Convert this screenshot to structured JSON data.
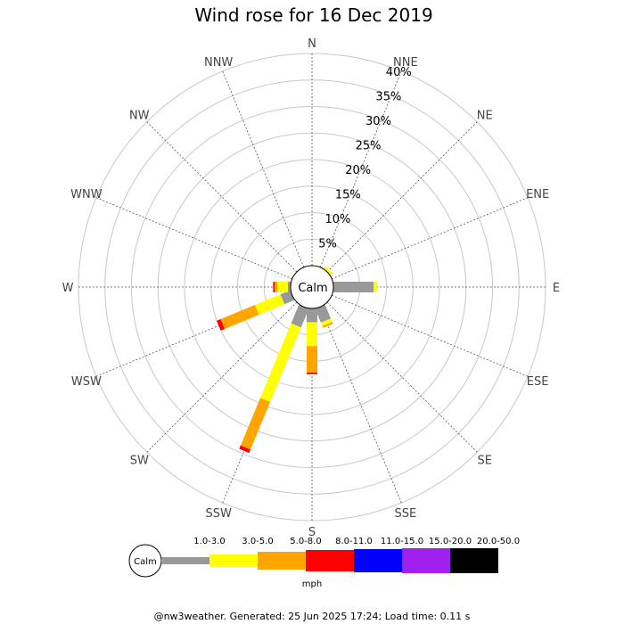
{
  "chart_data": {
    "type": "wind-rose",
    "title": "Wind rose for 16 Dec 2019",
    "directions": [
      "N",
      "NNE",
      "NE",
      "ENE",
      "E",
      "ESE",
      "SE",
      "SSE",
      "S",
      "SSW",
      "SW",
      "WSW",
      "W",
      "WNW",
      "NW",
      "NNW"
    ],
    "ring_labels": [
      "5%",
      "10%",
      "15%",
      "20%",
      "25%",
      "30%",
      "35%",
      "40%"
    ],
    "rmax": 40,
    "calm_label": "Calm",
    "unit": "mph",
    "speed_bins": [
      {
        "label": "1.0-3.0",
        "color": "#999999"
      },
      {
        "label": "3.0-5.0",
        "color": "#ffff00"
      },
      {
        "label": "5.0-8.0",
        "color": "#ffa500"
      },
      {
        "label": "8.0-11.0",
        "color": "#ff0000"
      },
      {
        "label": "11.0-15.0",
        "color": "#0000ff"
      },
      {
        "label": "15.0-20.0",
        "color": "#a020f0"
      },
      {
        "label": "20.0-50.0",
        "color": "#000000"
      }
    ],
    "series": [
      {
        "direction": "N",
        "values": [
          0,
          0,
          0,
          0,
          0,
          0,
          0
        ]
      },
      {
        "direction": "NNE",
        "values": [
          0,
          0,
          0,
          0,
          0,
          0,
          0
        ]
      },
      {
        "direction": "NE",
        "values": [
          0,
          0.5,
          0,
          0,
          0,
          0,
          0
        ]
      },
      {
        "direction": "ENE",
        "values": [
          0,
          0,
          0,
          0,
          0,
          0,
          0
        ]
      },
      {
        "direction": "E",
        "values": [
          7.6,
          0.6,
          0,
          0,
          0,
          0,
          0
        ]
      },
      {
        "direction": "ESE",
        "values": [
          0,
          0,
          0,
          0,
          0,
          0,
          0
        ]
      },
      {
        "direction": "SE",
        "values": [
          0,
          0,
          0,
          0,
          0,
          0,
          0
        ]
      },
      {
        "direction": "SSE",
        "values": [
          2.8,
          0.7,
          0.4,
          0,
          0,
          0,
          0
        ]
      },
      {
        "direction": "S",
        "values": [
          2.6,
          4.5,
          5.0,
          0.3,
          0,
          0,
          0
        ]
      },
      {
        "direction": "SSW",
        "values": [
          3.8,
          15.2,
          9.7,
          0.7,
          0,
          0,
          0
        ]
      },
      {
        "direction": "SW",
        "values": [
          0,
          0,
          0,
          0,
          0,
          0,
          0
        ]
      },
      {
        "direction": "WSW",
        "values": [
          2.0,
          5.2,
          7.0,
          0.8,
          0,
          0,
          0
        ]
      },
      {
        "direction": "W",
        "values": [
          0.5,
          2.0,
          0.5,
          0.3,
          0,
          0,
          0
        ]
      },
      {
        "direction": "WNW",
        "values": [
          0,
          0,
          0,
          0,
          0,
          0,
          0
        ]
      },
      {
        "direction": "NW",
        "values": [
          0,
          0,
          0,
          0,
          0,
          0,
          0
        ]
      },
      {
        "direction": "NNW",
        "values": [
          0,
          0,
          0,
          0,
          0,
          0,
          0
        ]
      }
    ],
    "grid": true
  },
  "footer": "@nw3weather. Generated: 25 Jun 2025 17:24; Load time: 0.11 s"
}
